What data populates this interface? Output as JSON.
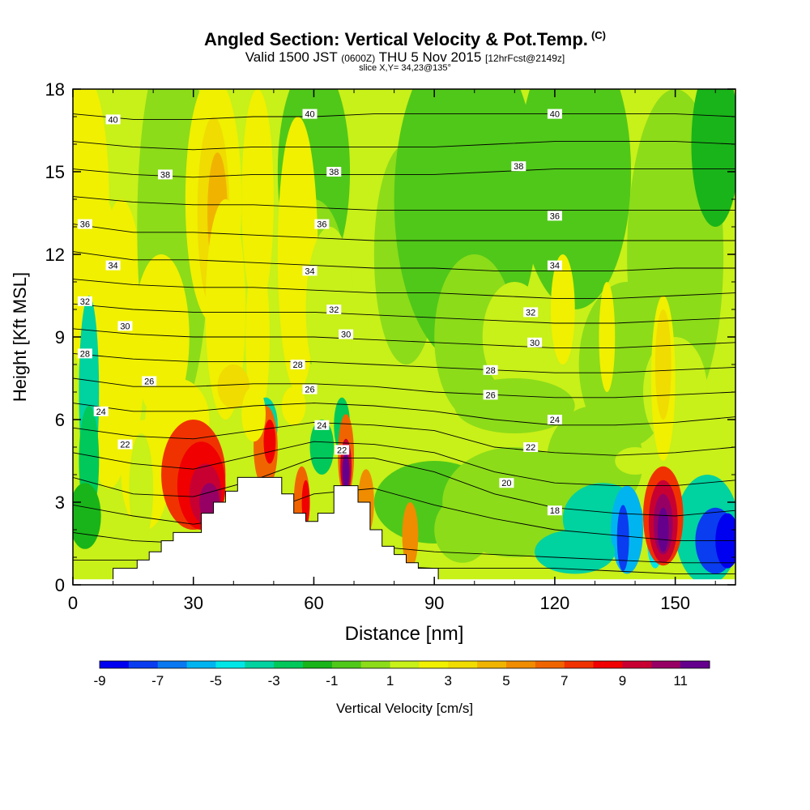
{
  "chart_data": {
    "type": "heatmap",
    "title": "Angled Section: Vertical Velocity & Pot.Temp.",
    "title_unit": "(C)",
    "subtitle": {
      "valid_prefix": "Valid 1500 JST",
      "zulu": "(0600Z)",
      "date": "THU 5 Nov 2015",
      "forecast": "[12hrFcst@2149z]"
    },
    "slice_label": "slice X,Y= 34,23@135°",
    "xlabel": "Distance [nm]",
    "ylabel": "Height [Kft MSL]",
    "xlim": [
      0,
      165
    ],
    "ylim": [
      0,
      18
    ],
    "xticks": [
      "0",
      "30",
      "60",
      "90",
      "120",
      "150"
    ],
    "yticks": [
      "0",
      "3",
      "6",
      "9",
      "12",
      "15",
      "18"
    ],
    "colorbar": {
      "label": "Vertical Velocity [cm/s]",
      "tick_labels": [
        "-9",
        "-7",
        "-5",
        "-3",
        "-1",
        "1",
        "3",
        "5",
        "7",
        "9",
        "11"
      ],
      "colors": [
        "#0000f0",
        "#0a3cf0",
        "#0a78f0",
        "#00b4f0",
        "#00e6e6",
        "#00d2a0",
        "#00c85a",
        "#19b419",
        "#50c819",
        "#8cdc19",
        "#c8f019",
        "#f0f000",
        "#f0dc00",
        "#f0b400",
        "#f08c00",
        "#f06400",
        "#f03200",
        "#f00000",
        "#c80032",
        "#960064",
        "#64008c"
      ]
    },
    "contour_labels": [
      {
        "text": "40",
        "x": 10,
        "y": 16.9
      },
      {
        "text": "40",
        "x": 59,
        "y": 17.1
      },
      {
        "text": "40",
        "x": 120,
        "y": 17.1
      },
      {
        "text": "38",
        "x": 23,
        "y": 14.9
      },
      {
        "text": "38",
        "x": 65,
        "y": 15.0
      },
      {
        "text": "38",
        "x": 111,
        "y": 15.2
      },
      {
        "text": "36",
        "x": 3,
        "y": 13.1
      },
      {
        "text": "36",
        "x": 62,
        "y": 13.1
      },
      {
        "text": "36",
        "x": 120,
        "y": 13.4
      },
      {
        "text": "34",
        "x": 10,
        "y": 11.6
      },
      {
        "text": "34",
        "x": 59,
        "y": 11.4
      },
      {
        "text": "34",
        "x": 120,
        "y": 11.6
      },
      {
        "text": "32",
        "x": 3,
        "y": 10.3
      },
      {
        "text": "32",
        "x": 65,
        "y": 10.0
      },
      {
        "text": "32",
        "x": 114,
        "y": 9.9
      },
      {
        "text": "30",
        "x": 13,
        "y": 9.4
      },
      {
        "text": "30",
        "x": 68,
        "y": 9.1
      },
      {
        "text": "30",
        "x": 115,
        "y": 8.8
      },
      {
        "text": "28",
        "x": 3,
        "y": 8.4
      },
      {
        "text": "28",
        "x": 56,
        "y": 8.0
      },
      {
        "text": "28",
        "x": 104,
        "y": 7.8
      },
      {
        "text": "26",
        "x": 19,
        "y": 7.4
      },
      {
        "text": "26",
        "x": 59,
        "y": 7.1
      },
      {
        "text": "26",
        "x": 104,
        "y": 6.9
      },
      {
        "text": "24",
        "x": 7,
        "y": 6.3
      },
      {
        "text": "24",
        "x": 62,
        "y": 5.8
      },
      {
        "text": "24",
        "x": 120,
        "y": 6.0
      },
      {
        "text": "22",
        "x": 13,
        "y": 5.1
      },
      {
        "text": "22",
        "x": 67,
        "y": 4.9
      },
      {
        "text": "22",
        "x": 114,
        "y": 5.0
      },
      {
        "text": "20",
        "x": 108,
        "y": 3.7
      },
      {
        "text": "18",
        "x": 120,
        "y": 2.7
      }
    ],
    "terrain": [
      [
        10,
        0.6
      ],
      [
        16,
        0.6
      ],
      [
        16,
        0.9
      ],
      [
        19,
        0.9
      ],
      [
        19,
        1.2
      ],
      [
        22,
        1.2
      ],
      [
        22,
        1.6
      ],
      [
        25,
        1.6
      ],
      [
        25,
        1.9
      ],
      [
        32,
        1.9
      ],
      [
        32,
        2.6
      ],
      [
        35,
        2.6
      ],
      [
        35,
        3.0
      ],
      [
        38,
        3.0
      ],
      [
        38,
        3.4
      ],
      [
        41,
        3.4
      ],
      [
        41,
        3.9
      ],
      [
        52,
        3.9
      ],
      [
        52,
        3.3
      ],
      [
        55,
        3.3
      ],
      [
        55,
        2.6
      ],
      [
        58,
        2.6
      ],
      [
        58,
        2.3
      ],
      [
        61,
        2.3
      ],
      [
        61,
        2.6
      ],
      [
        65,
        2.6
      ],
      [
        65,
        3.6
      ],
      [
        71,
        3.6
      ],
      [
        71,
        3.0
      ],
      [
        74,
        3.0
      ],
      [
        74,
        2.0
      ],
      [
        77,
        2.0
      ],
      [
        77,
        1.4
      ],
      [
        80,
        1.4
      ],
      [
        80,
        1.1
      ],
      [
        83,
        1.1
      ],
      [
        83,
        0.8
      ],
      [
        86,
        0.8
      ],
      [
        86,
        0.6
      ],
      [
        91,
        0.6
      ]
    ]
  }
}
